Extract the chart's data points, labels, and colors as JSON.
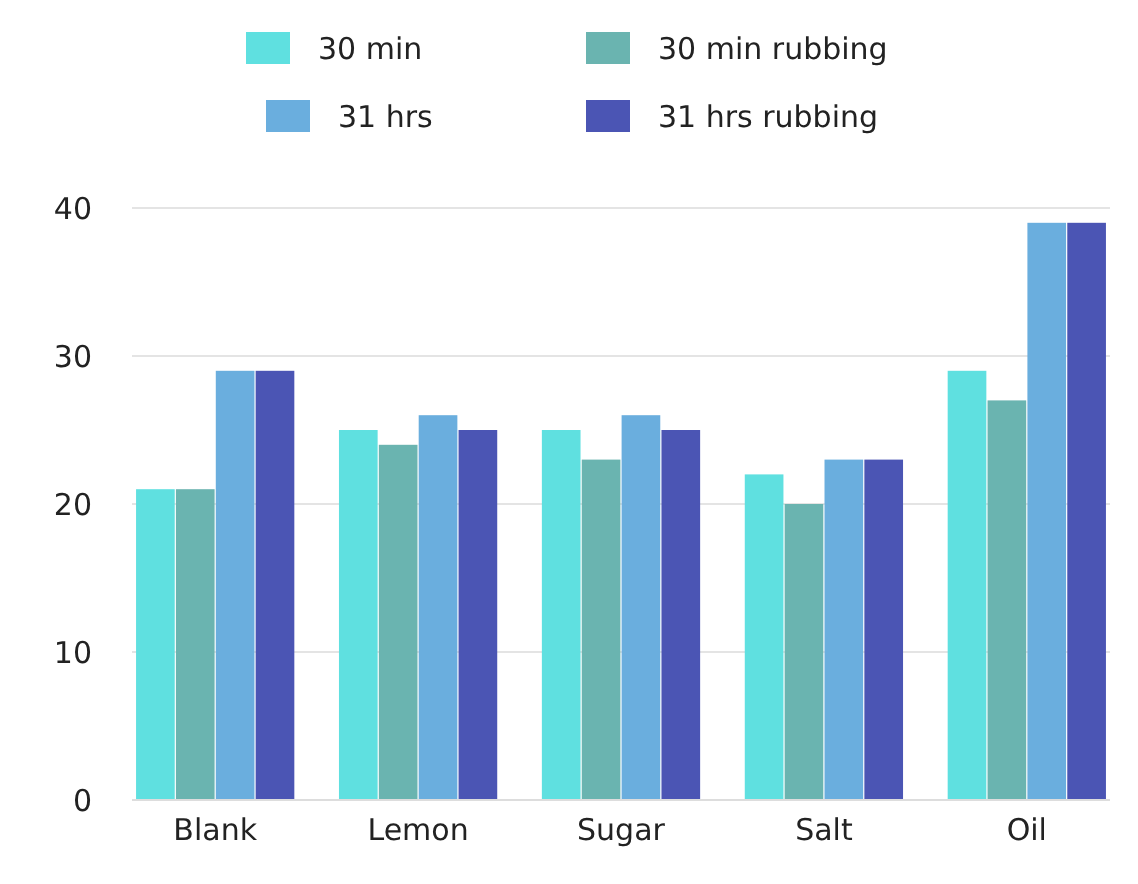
{
  "chart_data": {
    "type": "bar",
    "categories": [
      "Blank",
      "Lemon",
      "Sugar",
      "Salt",
      "Oil"
    ],
    "series": [
      {
        "name": "30 min",
        "color": "#5fe0e0",
        "values": [
          21,
          25,
          25,
          22,
          29
        ]
      },
      {
        "name": "30 min rubbing",
        "color": "#6ab4b0",
        "values": [
          21,
          24,
          23,
          20,
          27
        ]
      },
      {
        "name": "31 hrs",
        "color": "#6aaede",
        "values": [
          29,
          26,
          26,
          23,
          39
        ]
      },
      {
        "name": "31 hrs rubbing",
        "color": "#4b55b4",
        "values": [
          29,
          25,
          25,
          23,
          39
        ]
      }
    ],
    "ylim": [
      0,
      40
    ],
    "yticks": [
      0,
      10,
      20,
      30,
      40
    ],
    "grid": "y",
    "legend": "top"
  }
}
